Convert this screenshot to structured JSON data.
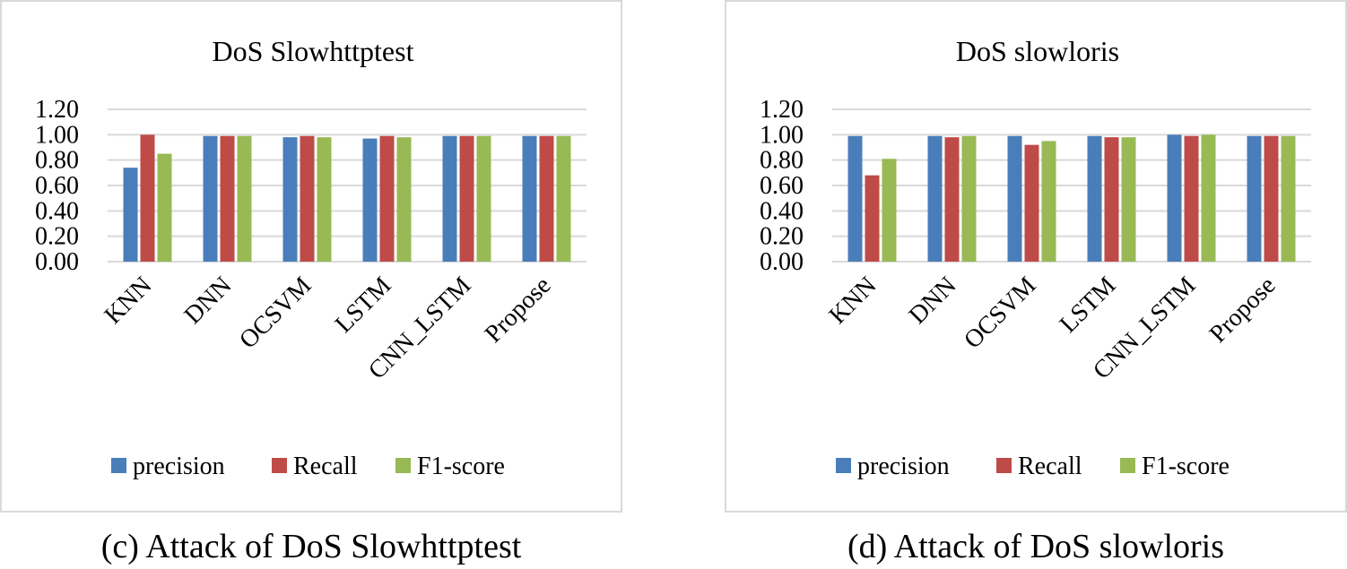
{
  "chart_data": [
    {
      "type": "bar",
      "title": "DoS Slowhttptest",
      "caption": "(c) Attack of DoS Slowhttptest",
      "categories": [
        "KNN",
        "DNN",
        "OCSVM",
        "LSTM",
        "CNN_LSTM",
        "Propose"
      ],
      "series": [
        {
          "name": "precision",
          "color": "#4a7ebb",
          "values": [
            0.74,
            0.99,
            0.98,
            0.97,
            0.99,
            0.99
          ]
        },
        {
          "name": "Recall",
          "color": "#be4b48",
          "values": [
            1.0,
            0.99,
            0.99,
            0.99,
            0.99,
            0.99
          ]
        },
        {
          "name": "F1-score",
          "color": "#98b954",
          "values": [
            0.85,
            0.99,
            0.98,
            0.98,
            0.99,
            0.99
          ]
        }
      ],
      "ylim": [
        0,
        1.2
      ],
      "yticks": [
        "0.00",
        "0.20",
        "0.40",
        "0.60",
        "0.80",
        "1.00",
        "1.20"
      ],
      "grid": true,
      "legend": "bottom"
    },
    {
      "type": "bar",
      "title": "DoS slowloris",
      "caption": "(d) Attack of DoS slowloris",
      "categories": [
        "KNN",
        "DNN",
        "OCSVM",
        "LSTM",
        "CNN_LSTM",
        "Propose"
      ],
      "series": [
        {
          "name": "precision",
          "color": "#4a7ebb",
          "values": [
            0.99,
            0.99,
            0.99,
            0.99,
            1.0,
            0.99
          ]
        },
        {
          "name": "Recall",
          "color": "#be4b48",
          "values": [
            0.68,
            0.98,
            0.92,
            0.98,
            0.99,
            0.99
          ]
        },
        {
          "name": "F1-score",
          "color": "#98b954",
          "values": [
            0.81,
            0.99,
            0.95,
            0.98,
            1.0,
            0.99
          ]
        }
      ],
      "ylim": [
        0,
        1.2
      ],
      "yticks": [
        "0.00",
        "0.20",
        "0.40",
        "0.60",
        "0.80",
        "1.00",
        "1.20"
      ],
      "grid": true,
      "legend": "bottom"
    }
  ]
}
